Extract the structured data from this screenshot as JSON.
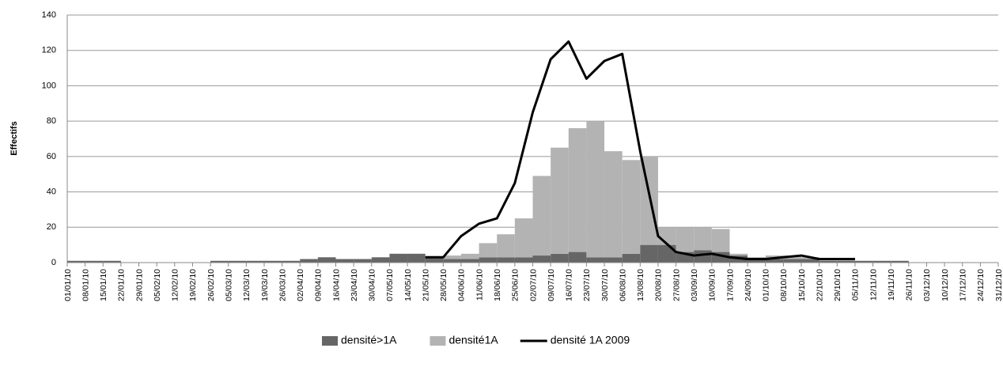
{
  "chart_data": {
    "type": "bar",
    "y_label": "Effectifs",
    "categories": [
      "01/01/10",
      "08/01/10",
      "15/01/10",
      "22/01/10",
      "29/01/10",
      "05/02/10",
      "12/02/10",
      "19/02/10",
      "26/02/10",
      "05/03/10",
      "12/03/10",
      "19/03/10",
      "26/03/10",
      "02/04/10",
      "09/04/10",
      "16/04/10",
      "23/04/10",
      "30/04/10",
      "07/05/10",
      "14/05/10",
      "21/05/10",
      "28/05/10",
      "04/06/10",
      "11/06/10",
      "18/06/10",
      "25/06/10",
      "02/07/10",
      "09/07/10",
      "16/07/10",
      "23/07/10",
      "30/07/10",
      "06/08/10",
      "13/08/10",
      "20/08/10",
      "27/08/10",
      "03/09/10",
      "10/09/10",
      "17/09/10",
      "24/09/10",
      "01/10/10",
      "08/10/10",
      "15/10/10",
      "22/10/10",
      "29/10/10",
      "05/11/10",
      "12/11/10",
      "19/11/10",
      "26/11/10",
      "03/12/10",
      "10/12/10",
      "17/12/10",
      "24/12/10",
      "31/12/10"
    ],
    "series": [
      {
        "name": "densité>1A",
        "color": "#666666",
        "kind": "bar",
        "values": [
          1,
          1,
          1,
          0,
          0,
          0,
          0,
          0,
          1,
          1,
          1,
          1,
          1,
          2,
          3,
          2,
          2,
          3,
          5,
          5,
          3,
          2,
          2,
          3,
          3,
          3,
          4,
          5,
          6,
          3,
          3,
          5,
          10,
          10,
          6,
          7,
          6,
          4,
          2,
          2,
          2,
          2,
          1,
          1,
          1,
          1,
          1,
          0,
          0,
          0,
          0,
          0,
          0
        ]
      },
      {
        "name": "densité1A",
        "color": "#b3b3b3",
        "kind": "bar",
        "values": [
          0,
          0,
          0,
          0,
          0,
          0,
          0,
          0,
          0,
          0,
          0,
          0,
          0,
          0,
          0,
          0,
          0,
          0,
          0,
          0,
          0,
          2,
          3,
          8,
          13,
          22,
          45,
          60,
          70,
          77,
          60,
          53,
          50,
          10,
          14,
          13,
          13,
          1,
          1,
          2,
          2,
          1,
          1,
          1,
          0,
          0,
          0,
          0,
          0,
          0,
          0,
          0,
          0
        ]
      },
      {
        "name": "densité 1A 2009",
        "color": "#000000",
        "kind": "line",
        "values": [
          null,
          null,
          null,
          null,
          null,
          null,
          null,
          null,
          null,
          null,
          null,
          null,
          null,
          null,
          null,
          null,
          null,
          null,
          null,
          null,
          3,
          3,
          15,
          22,
          25,
          45,
          85,
          115,
          125,
          104,
          114,
          118,
          63,
          15,
          6,
          4,
          5,
          3,
          2,
          2,
          3,
          4,
          2,
          2,
          2,
          null,
          null,
          null,
          null,
          null,
          null,
          null,
          null
        ]
      }
    ],
    "stacked": true,
    "ylim": [
      0,
      140
    ],
    "yticks": [
      0,
      20,
      40,
      60,
      80,
      100,
      120,
      140
    ],
    "grid": true,
    "legend": "bottom"
  }
}
